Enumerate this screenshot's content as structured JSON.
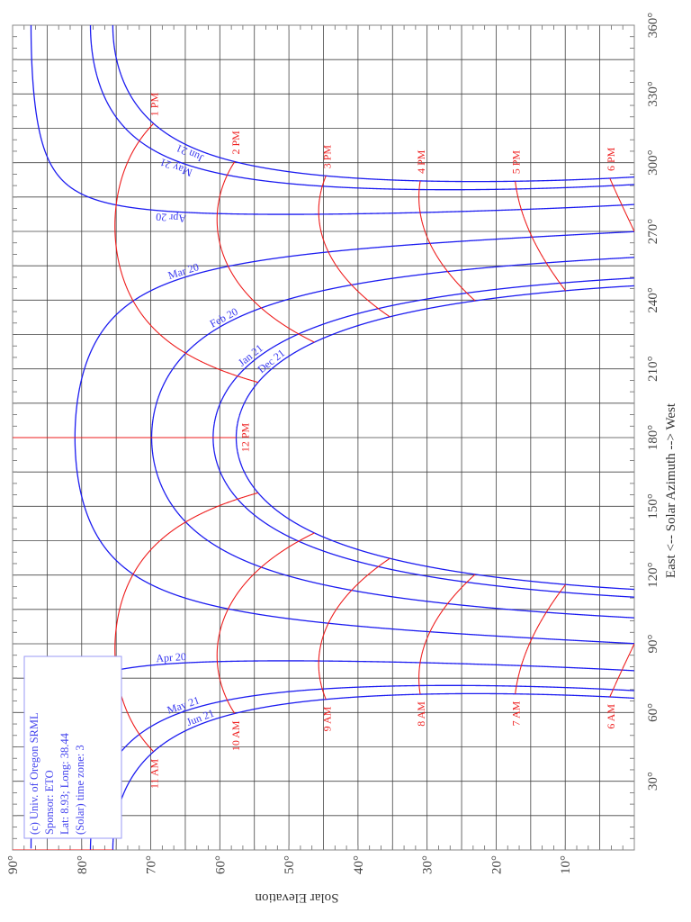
{
  "chart_data": {
    "type": "line",
    "title": "",
    "xlabel": "East <-- Solar Azimuth --> West",
    "ylabel": "Solar Elevation",
    "azimuth_range": [
      0,
      360
    ],
    "elevation_range": [
      0,
      90
    ],
    "azimuth_ticks": [
      "30°",
      "60°",
      "90°",
      "120°",
      "150°",
      "180°",
      "210°",
      "240°",
      "270°",
      "300°",
      "330°",
      "360°"
    ],
    "elevation_ticks": [
      "10°",
      "20°",
      "30°",
      "40°",
      "50°",
      "60°",
      "70°",
      "80°",
      "90°"
    ],
    "grid": true,
    "latitude": 8.93,
    "longitude": 38.44,
    "series": [
      {
        "name": "Jun 21",
        "declination": 23.44
      },
      {
        "name": "May 21",
        "declination": 20.2
      },
      {
        "name": "Apr 20",
        "declination": 11.6
      },
      {
        "name": "Mar 20",
        "declination": -0.1
      },
      {
        "name": "Feb 20",
        "declination": -11.2
      },
      {
        "name": "Jan 21",
        "declination": -20.1
      },
      {
        "name": "Dec 21",
        "declination": -23.44
      }
    ],
    "hour_lines": [
      {
        "label": "6 AM",
        "hour": 6
      },
      {
        "label": "7 AM",
        "hour": 7
      },
      {
        "label": "8 AM",
        "hour": 8
      },
      {
        "label": "9 AM",
        "hour": 9
      },
      {
        "label": "10 AM",
        "hour": 10
      },
      {
        "label": "11 AM",
        "hour": 11
      },
      {
        "label": "12 PM",
        "hour": 12
      },
      {
        "label": "1 PM",
        "hour": 13
      },
      {
        "label": "2 PM",
        "hour": 14
      },
      {
        "label": "3 PM",
        "hour": 15
      },
      {
        "label": "4 PM",
        "hour": 16
      },
      {
        "label": "5 PM",
        "hour": 17
      },
      {
        "label": "6 PM",
        "hour": 18
      }
    ],
    "colors": {
      "date_curves": "#1c1cf0",
      "hour_lines": "#ee1c1c",
      "grid": "#444444"
    }
  },
  "info_box": {
    "lines": [
      "(c) Univ. of Oregon SRML",
      "Sponsor: ETO",
      "Lat: 8.93; Long: 38.44",
      "(Solar) time zone: 3"
    ]
  }
}
